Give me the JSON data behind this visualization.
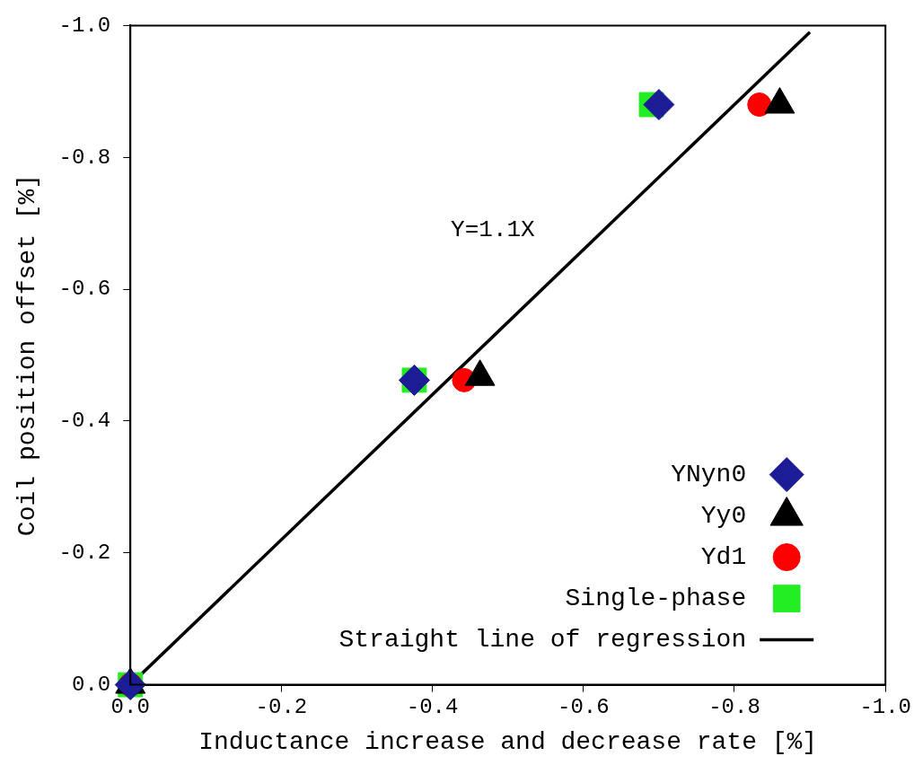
{
  "chart_data": {
    "type": "scatter",
    "xlabel": "Inductance increase and decrease rate [%]",
    "ylabel": "Coil position offset [%]",
    "xlim": [
      0,
      -1
    ],
    "ylim": [
      0,
      -1
    ],
    "xticks": [
      {
        "value": 0,
        "label": "0.0"
      },
      -0.2,
      -0.4,
      -0.6,
      -0.8,
      {
        "value": -1,
        "label": "-1.0"
      }
    ],
    "yticks": [
      {
        "value": 0,
        "label": "0.0"
      },
      -0.2,
      -0.4,
      -0.6,
      -0.8,
      {
        "value": -1,
        "label": "-1.0"
      }
    ],
    "grid": false,
    "legend": "bottom right",
    "annotations": [
      "Y=1.1X"
    ],
    "series": [
      {
        "name": "YNyn0",
        "color": "#1c1c96",
        "marker": "diamond",
        "x": [
          0,
          -0.376,
          -0.7
        ],
        "values": [
          0,
          -0.462,
          -0.88
        ]
      },
      {
        "name": "Yy0",
        "color": "#000000",
        "marker": "triangle",
        "x": [
          0,
          -0.463,
          -0.86
        ],
        "values": [
          0,
          -0.467,
          -0.88
        ]
      },
      {
        "name": "Yd1",
        "color": "#ff0000",
        "marker": "circle",
        "x": [
          0,
          -0.442,
          -0.833
        ],
        "values": [
          0,
          -0.462,
          -0.88
        ]
      },
      {
        "name": "Single-phase",
        "color": "#22ee22",
        "marker": "square",
        "x": [
          0,
          -0.376,
          -0.69
        ],
        "values": [
          0,
          -0.462,
          -0.88
        ]
      },
      {
        "name": "Straight line of regression",
        "type": "line",
        "color": "#000000",
        "line_style": "solid",
        "marker": "none",
        "x": [
          0,
          -0.9
        ],
        "values": [
          0,
          -0.99
        ]
      }
    ]
  }
}
